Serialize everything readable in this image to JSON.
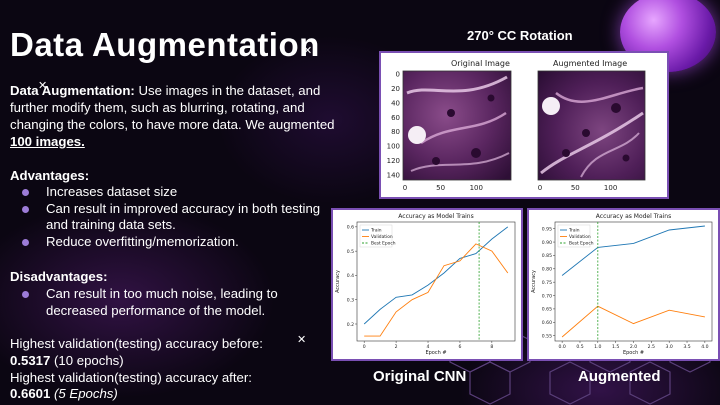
{
  "slide": {
    "title": "Data Augmentation",
    "intro": {
      "label": "Data Augmentation:",
      "text": "Use images in the dataset, and further modify them, such as blurring, rotating, and changing the colors, to have more data. We augmented",
      "highlight": "100 images."
    },
    "advantages_heading": "Advantages:",
    "advantages": [
      "Increases dataset size",
      "Can result in improved accuracy in both testing and training data sets.",
      "Reduce overfitting/memorization."
    ],
    "disadvantages_heading": "Disadvantages:",
    "disadvantages": [
      "Can result in too much noise, leading to decreased performance of the model."
    ],
    "accuracy_before": {
      "text": "Highest validation(testing) accuracy before:",
      "value": "0.5317",
      "note": "(10 epochs)"
    },
    "accuracy_after": {
      "text": "Highest validation(testing) accuracy after:",
      "value": "0.6601",
      "note": "(5 Epochs)"
    }
  },
  "rotation": {
    "heading": "270° CC Rotation",
    "original_label": "Original Image",
    "augmented_label": "Augmented Image",
    "y_ticks": [
      "0",
      "20",
      "40",
      "60",
      "80",
      "100",
      "120",
      "140"
    ],
    "x_ticks": [
      "0",
      "50",
      "100"
    ]
  },
  "colors": {
    "train": "#1f77b4",
    "validation": "#ff7f0e",
    "best_epoch": "#2ca02c",
    "frame": "#7a4fb3"
  },
  "chart_data": [
    {
      "type": "line",
      "title": "Accuracy as Model Trains",
      "xlabel": "Epoch #",
      "ylabel": "Accuracy",
      "caption": "Original CNN",
      "x": [
        0,
        1,
        2,
        3,
        4,
        5,
        6,
        7,
        8,
        9
      ],
      "series": [
        {
          "name": "Train",
          "values": [
            0.2,
            0.26,
            0.31,
            0.32,
            0.36,
            0.41,
            0.47,
            0.49,
            0.55,
            0.6
          ]
        },
        {
          "name": "Validation",
          "values": [
            0.15,
            0.15,
            0.25,
            0.3,
            0.33,
            0.44,
            0.46,
            0.53,
            0.5,
            0.41
          ]
        }
      ],
      "best_epoch": {
        "name": "Best Epoch",
        "x": 7.2
      },
      "xlim": [
        -0.45,
        9.45
      ],
      "ylim": [
        0.13,
        0.62
      ],
      "x_ticks": [
        "0",
        "2",
        "4",
        "6",
        "8"
      ],
      "x_tick_values": [
        0,
        2,
        4,
        6,
        8
      ],
      "y_ticks": [
        "0.2",
        "0.3",
        "0.4",
        "0.5",
        "0.6"
      ],
      "y_tick_values": [
        0.2,
        0.3,
        0.4,
        0.5,
        0.6
      ],
      "legend": "top-left",
      "grid": false
    },
    {
      "type": "line",
      "title": "Accuracy as Model Trains",
      "xlabel": "Epoch #",
      "ylabel": "Accuracy",
      "caption": "Augmented",
      "x": [
        0,
        1,
        2,
        3,
        4
      ],
      "series": [
        {
          "name": "Train",
          "values": [
            0.775,
            0.88,
            0.895,
            0.945,
            0.96
          ]
        },
        {
          "name": "Validation",
          "values": [
            0.545,
            0.66,
            0.595,
            0.645,
            0.62
          ]
        }
      ],
      "best_epoch": {
        "name": "Best Epoch",
        "x": 1
      },
      "xlim": [
        -0.2,
        4.2
      ],
      "ylim": [
        0.53,
        0.975
      ],
      "x_ticks": [
        "0.0",
        "0.5",
        "1.0",
        "1.5",
        "2.0",
        "2.5",
        "3.0",
        "3.5",
        "4.0"
      ],
      "x_tick_values": [
        0,
        0.5,
        1,
        1.5,
        2,
        2.5,
        3,
        3.5,
        4
      ],
      "y_ticks": [
        "0.55",
        "0.60",
        "0.65",
        "0.70",
        "0.75",
        "0.80",
        "0.85",
        "0.90",
        "0.95"
      ],
      "y_tick_values": [
        0.55,
        0.6,
        0.65,
        0.7,
        0.75,
        0.8,
        0.85,
        0.9,
        0.95
      ],
      "legend": "top-left",
      "grid": false
    }
  ]
}
